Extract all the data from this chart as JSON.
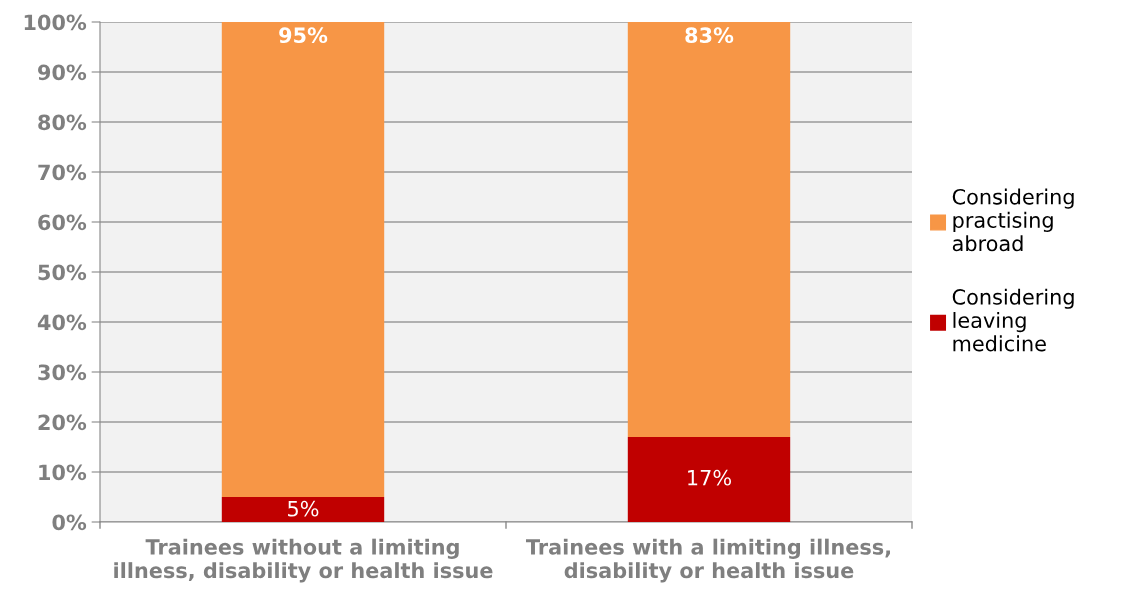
{
  "chart_data": {
    "type": "bar",
    "stacked": true,
    "categories": [
      "Trainees without a limiting\nillness, disability or health issue",
      "Trainees with a limiting illness,\ndisability or health issue"
    ],
    "series": [
      {
        "name": "Considering\nleaving\nmedicine",
        "color": "#c00000",
        "values": [
          5,
          17
        ],
        "value_labels": [
          "5%",
          "17%"
        ]
      },
      {
        "name": "Considering\npractising\nabroad",
        "color": "#f79646",
        "values": [
          95,
          83
        ],
        "value_labels": [
          "95%",
          "83%"
        ]
      }
    ],
    "ylim": [
      0,
      100
    ],
    "yticks": [
      {
        "value": 0,
        "label": "0%"
      },
      {
        "value": 10,
        "label": "10%"
      },
      {
        "value": 20,
        "label": "20%"
      },
      {
        "value": 30,
        "label": "30%"
      },
      {
        "value": 40,
        "label": "40%"
      },
      {
        "value": 50,
        "label": "50%"
      },
      {
        "value": 60,
        "label": "60%"
      },
      {
        "value": 70,
        "label": "70%"
      },
      {
        "value": 80,
        "label": "80%"
      },
      {
        "value": 90,
        "label": "90%"
      },
      {
        "value": 100,
        "label": "100%"
      }
    ],
    "grid": "y",
    "legend": "right"
  }
}
